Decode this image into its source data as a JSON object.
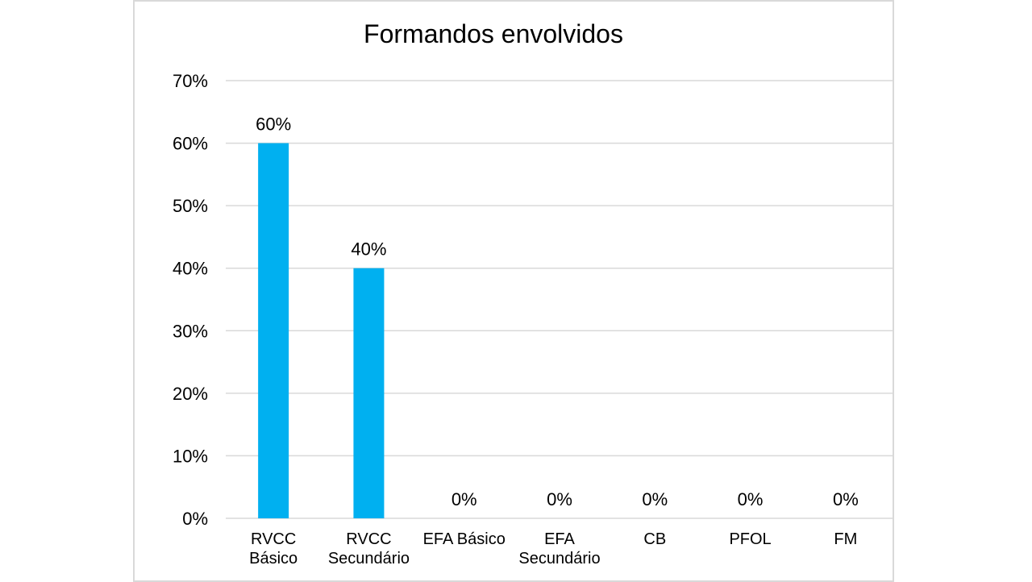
{
  "chart_data": {
    "type": "bar",
    "title": "Formandos envolvidos",
    "xlabel": "",
    "ylabel": "",
    "categories": [
      [
        "RVCC",
        "Básico"
      ],
      [
        "RVCC",
        "Secundário"
      ],
      [
        "EFA Básico"
      ],
      [
        "EFA",
        "Secundário"
      ],
      [
        "CB"
      ],
      [
        "PFOL"
      ],
      [
        "FM"
      ]
    ],
    "values": [
      60,
      40,
      0,
      0,
      0,
      0,
      0
    ],
    "data_labels": [
      "60%",
      "40%",
      "0%",
      "0%",
      "0%",
      "0%",
      "0%"
    ],
    "ylim": [
      0,
      70
    ],
    "y_ticks": [
      0,
      10,
      20,
      30,
      40,
      50,
      60,
      70
    ],
    "y_tick_labels": [
      "0%",
      "10%",
      "20%",
      "30%",
      "40%",
      "50%",
      "60%",
      "70%"
    ],
    "grid": true,
    "legend": "none",
    "bar_color": "#00b0f0",
    "grid_color": "#d9d9d9"
  }
}
